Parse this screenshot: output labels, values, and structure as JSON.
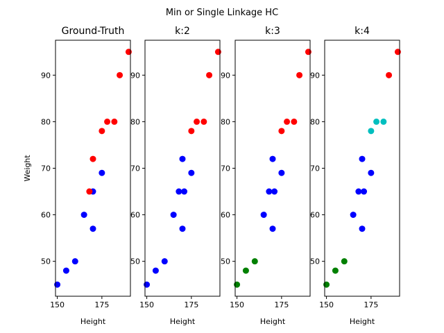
{
  "suptitle": "Min or Single Linkage HC",
  "chart_data": [
    {
      "type": "scatter",
      "title": "Ground-Truth",
      "xlabel": "Height",
      "ylabel": "Weight",
      "xlim": [
        149,
        191
      ],
      "ylim": [
        42.5,
        97.5
      ],
      "xticks": [
        150,
        175
      ],
      "yticks": [
        50,
        60,
        70,
        80,
        90
      ],
      "points": [
        {
          "x": 150,
          "y": 45,
          "color": "#0000ff"
        },
        {
          "x": 155,
          "y": 48,
          "color": "#0000ff"
        },
        {
          "x": 160,
          "y": 50,
          "color": "#0000ff"
        },
        {
          "x": 165,
          "y": 60,
          "color": "#0000ff"
        },
        {
          "x": 170,
          "y": 57,
          "color": "#0000ff"
        },
        {
          "x": 170,
          "y": 65,
          "color": "#0000ff"
        },
        {
          "x": 175,
          "y": 69,
          "color": "#0000ff"
        },
        {
          "x": 168,
          "y": 65,
          "color": "#ff0000"
        },
        {
          "x": 170,
          "y": 72,
          "color": "#ff0000"
        },
        {
          "x": 175,
          "y": 78,
          "color": "#ff0000"
        },
        {
          "x": 178,
          "y": 80,
          "color": "#ff0000"
        },
        {
          "x": 182,
          "y": 80,
          "color": "#ff0000"
        },
        {
          "x": 185,
          "y": 90,
          "color": "#ff0000"
        },
        {
          "x": 190,
          "y": 95,
          "color": "#ff0000"
        }
      ]
    },
    {
      "type": "scatter",
      "title": "k:2",
      "xlabel": "Height",
      "ylabel": "",
      "xlim": [
        149,
        191
      ],
      "ylim": [
        42.5,
        97.5
      ],
      "xticks": [
        150,
        175
      ],
      "yticks": [
        50,
        60,
        70,
        80,
        90
      ],
      "points": [
        {
          "x": 150,
          "y": 45,
          "color": "#0000ff"
        },
        {
          "x": 155,
          "y": 48,
          "color": "#0000ff"
        },
        {
          "x": 160,
          "y": 50,
          "color": "#0000ff"
        },
        {
          "x": 165,
          "y": 60,
          "color": "#0000ff"
        },
        {
          "x": 170,
          "y": 57,
          "color": "#0000ff"
        },
        {
          "x": 168,
          "y": 65,
          "color": "#0000ff"
        },
        {
          "x": 171,
          "y": 65,
          "color": "#0000ff"
        },
        {
          "x": 175,
          "y": 69,
          "color": "#0000ff"
        },
        {
          "x": 170,
          "y": 72,
          "color": "#0000ff"
        },
        {
          "x": 175,
          "y": 78,
          "color": "#ff0000"
        },
        {
          "x": 178,
          "y": 80,
          "color": "#ff0000"
        },
        {
          "x": 182,
          "y": 80,
          "color": "#ff0000"
        },
        {
          "x": 185,
          "y": 90,
          "color": "#ff0000"
        },
        {
          "x": 190,
          "y": 95,
          "color": "#ff0000"
        }
      ]
    },
    {
      "type": "scatter",
      "title": "k:3",
      "xlabel": "Height",
      "ylabel": "",
      "xlim": [
        149,
        191
      ],
      "ylim": [
        42.5,
        97.5
      ],
      "xticks": [
        150,
        175
      ],
      "yticks": [
        50,
        60,
        70,
        80,
        90
      ],
      "points": [
        {
          "x": 150,
          "y": 45,
          "color": "#008000"
        },
        {
          "x": 155,
          "y": 48,
          "color": "#008000"
        },
        {
          "x": 160,
          "y": 50,
          "color": "#008000"
        },
        {
          "x": 165,
          "y": 60,
          "color": "#0000ff"
        },
        {
          "x": 170,
          "y": 57,
          "color": "#0000ff"
        },
        {
          "x": 168,
          "y": 65,
          "color": "#0000ff"
        },
        {
          "x": 171,
          "y": 65,
          "color": "#0000ff"
        },
        {
          "x": 175,
          "y": 69,
          "color": "#0000ff"
        },
        {
          "x": 170,
          "y": 72,
          "color": "#0000ff"
        },
        {
          "x": 175,
          "y": 78,
          "color": "#ff0000"
        },
        {
          "x": 178,
          "y": 80,
          "color": "#ff0000"
        },
        {
          "x": 182,
          "y": 80,
          "color": "#ff0000"
        },
        {
          "x": 185,
          "y": 90,
          "color": "#ff0000"
        },
        {
          "x": 190,
          "y": 95,
          "color": "#ff0000"
        }
      ]
    },
    {
      "type": "scatter",
      "title": "k:4",
      "xlabel": "Height",
      "ylabel": "",
      "xlim": [
        149,
        191
      ],
      "ylim": [
        42.5,
        97.5
      ],
      "xticks": [
        150,
        175
      ],
      "yticks": [
        50,
        60,
        70,
        80,
        90
      ],
      "points": [
        {
          "x": 150,
          "y": 45,
          "color": "#008000"
        },
        {
          "x": 155,
          "y": 48,
          "color": "#008000"
        },
        {
          "x": 160,
          "y": 50,
          "color": "#008000"
        },
        {
          "x": 165,
          "y": 60,
          "color": "#0000ff"
        },
        {
          "x": 170,
          "y": 57,
          "color": "#0000ff"
        },
        {
          "x": 168,
          "y": 65,
          "color": "#0000ff"
        },
        {
          "x": 171,
          "y": 65,
          "color": "#0000ff"
        },
        {
          "x": 175,
          "y": 69,
          "color": "#0000ff"
        },
        {
          "x": 170,
          "y": 72,
          "color": "#0000ff"
        },
        {
          "x": 175,
          "y": 78,
          "color": "#00bfbf"
        },
        {
          "x": 178,
          "y": 80,
          "color": "#00bfbf"
        },
        {
          "x": 182,
          "y": 80,
          "color": "#00bfbf"
        },
        {
          "x": 185,
          "y": 90,
          "color": "#ff0000"
        },
        {
          "x": 190,
          "y": 95,
          "color": "#ff0000"
        }
      ]
    }
  ]
}
